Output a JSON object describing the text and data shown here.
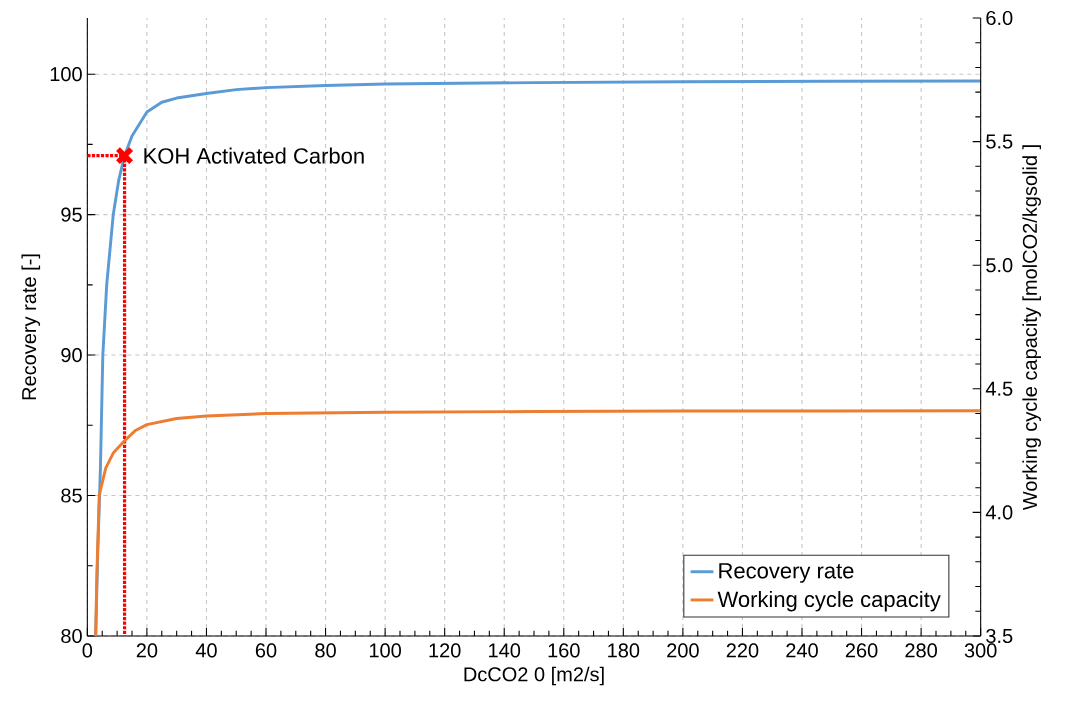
{
  "chart_data": {
    "type": "line",
    "xlabel": "DcCO2 0 [m2/s]",
    "ylabel": "Recovery rate [-]",
    "y2label": "Working cycle capacity [molCO2/kgsolid ]",
    "xlim": [
      0,
      300
    ],
    "xticks": [
      0,
      20,
      40,
      60,
      80,
      100,
      120,
      140,
      160,
      180,
      200,
      220,
      240,
      260,
      280,
      300
    ],
    "ylim": [
      80,
      102
    ],
    "yticks": [
      80,
      85,
      90,
      95,
      100
    ],
    "y2lim": [
      3.5,
      6.0
    ],
    "y2ticks": [
      {
        "value": 3.5,
        "label": "3.5"
      },
      {
        "value": 4.0,
        "label": "4.0"
      },
      {
        "value": 4.5,
        "label": "4.5"
      },
      {
        "value": 5.0,
        "label": "5.0"
      },
      {
        "value": 5.5,
        "label": "5.5"
      },
      {
        "value": 6.0,
        "label": "6.0"
      }
    ],
    "grid": true,
    "legend": "bottom right",
    "annotations": [
      {
        "text": "KOH Activated Carbon",
        "x": 12.5,
        "y": 97.1
      }
    ],
    "series": [
      {
        "name": "Recovery rate",
        "color": "#5b9bd5",
        "x": [
          2.8,
          3.5,
          4.4,
          5.2,
          6.5,
          8.7,
          10.5,
          12.5,
          15,
          20,
          25,
          30,
          40,
          50,
          60,
          80,
          100,
          150,
          200,
          250,
          300
        ],
        "values": [
          80,
          83,
          86,
          90,
          92.5,
          95,
          96.2,
          97.1,
          97.8,
          98.65,
          99.0,
          99.15,
          99.31,
          99.45,
          99.52,
          99.6,
          99.65,
          99.7,
          99.73,
          99.75,
          99.76
        ]
      },
      {
        "name": "Working cycle capacity",
        "color": "#ed7d31",
        "axis": "y2",
        "x": [
          2.8,
          3.2,
          4,
          6.2,
          8.7,
          12.5,
          16,
          20,
          30,
          40,
          60,
          100,
          150,
          200,
          250,
          300
        ],
        "values": [
          3.5,
          3.75,
          4.07,
          4.18,
          4.24,
          4.29,
          4.33,
          4.355,
          4.38,
          4.39,
          4.4,
          4.405,
          4.408,
          4.41,
          4.41,
          4.411
        ]
      },
      {
        "type": "line",
        "color": "#ff0000",
        "line_style": "dotted",
        "x": [
          0,
          12.5,
          12.5
        ],
        "values": [
          97.1,
          97.1,
          80
        ]
      },
      {
        "type": "scatter",
        "color": "#ff0000",
        "marker": "cross",
        "x": [
          12.5
        ],
        "values": [
          97.1
        ]
      }
    ]
  }
}
